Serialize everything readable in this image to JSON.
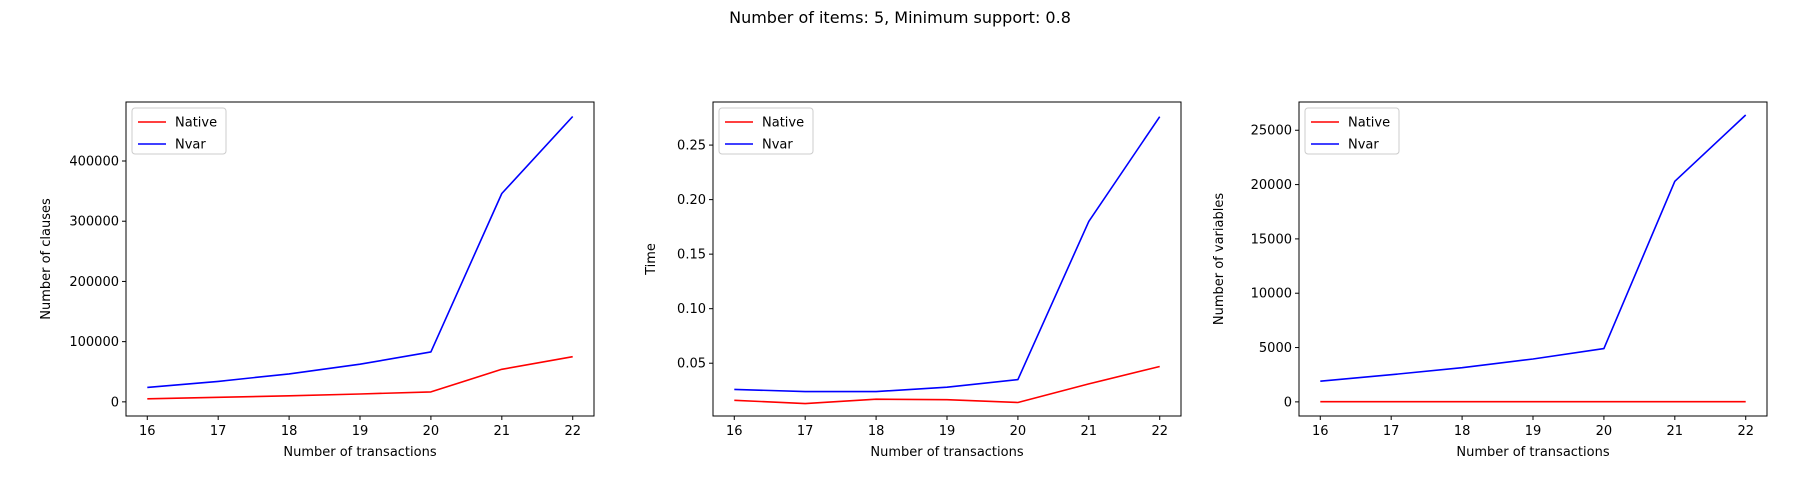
{
  "figure": {
    "suptitle": "Number of items: 5, Minimum support: 0.8"
  },
  "chart_data": [
    {
      "type": "line",
      "xlabel": "Number of transactions",
      "ylabel": "Number of clauses",
      "x": [
        16,
        17,
        18,
        19,
        20,
        21,
        22
      ],
      "xlim": [
        15.7,
        22.3
      ],
      "ylim": [
        -23500,
        498000
      ],
      "xticks": [
        16,
        17,
        18,
        19,
        20,
        21,
        22
      ],
      "yticks": [
        0,
        100000,
        200000,
        300000,
        400000
      ],
      "legend": "upper left",
      "series": [
        {
          "name": "Native",
          "color": "#ff0000",
          "values": [
            5000,
            7500,
            10000,
            13000,
            16500,
            54000,
            75000
          ]
        },
        {
          "name": "Nvar",
          "color": "#0000ff",
          "values": [
            24000,
            34000,
            46500,
            62500,
            83000,
            346000,
            474000
          ]
        }
      ]
    },
    {
      "type": "line",
      "xlabel": "Number of transactions",
      "ylabel": "Time",
      "x": [
        16,
        17,
        18,
        19,
        20,
        21,
        22
      ],
      "xlim": [
        15.7,
        22.3
      ],
      "ylim": [
        0.0016,
        0.2895
      ],
      "xticks": [
        16,
        17,
        18,
        19,
        20,
        21,
        22
      ],
      "yticks": [
        0.05,
        0.1,
        0.15,
        0.2,
        0.25
      ],
      "legend": "upper left",
      "series": [
        {
          "name": "Native",
          "color": "#ff0000",
          "values": [
            0.016,
            0.013,
            0.017,
            0.0165,
            0.014,
            0.031,
            0.047
          ]
        },
        {
          "name": "Nvar",
          "color": "#0000ff",
          "values": [
            0.026,
            0.024,
            0.024,
            0.028,
            0.035,
            0.18,
            0.276
          ]
        }
      ]
    },
    {
      "type": "line",
      "xlabel": "Number of transactions",
      "ylabel": "Number of variables",
      "x": [
        16,
        17,
        18,
        19,
        20,
        21,
        22
      ],
      "xlim": [
        15.7,
        22.3
      ],
      "ylim": [
        -1300,
        27600
      ],
      "xticks": [
        16,
        17,
        18,
        19,
        20,
        21,
        22
      ],
      "yticks": [
        0,
        5000,
        10000,
        15000,
        20000,
        25000
      ],
      "legend": "upper left",
      "series": [
        {
          "name": "Native",
          "color": "#ff0000",
          "values": [
            20,
            20,
            20,
            20,
            20,
            20,
            20
          ]
        },
        {
          "name": "Nvar",
          "color": "#0000ff",
          "values": [
            1900,
            2500,
            3150,
            3950,
            4900,
            20300,
            26400
          ]
        }
      ]
    }
  ]
}
